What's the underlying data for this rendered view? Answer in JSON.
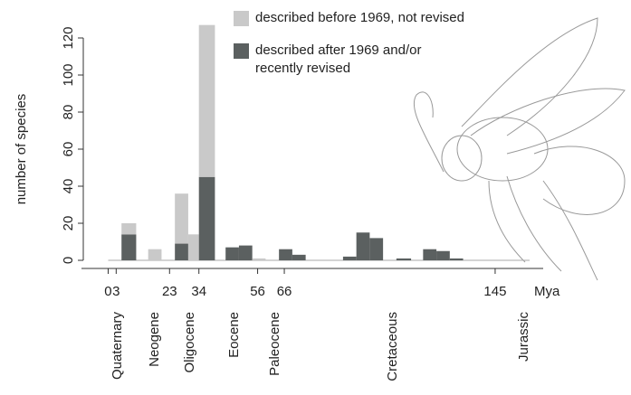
{
  "chart_data": {
    "type": "bar",
    "stacked": true,
    "y_label": "number of species",
    "x_label": "Mya",
    "x0": [
      5,
      15,
      25,
      30,
      34,
      44,
      49,
      54,
      64,
      69,
      88,
      93,
      98,
      108,
      118,
      123,
      128
    ],
    "x1": [
      10.5,
      20,
      30,
      34,
      40,
      49,
      54,
      59,
      69,
      74,
      93,
      98,
      103,
      113.5,
      123,
      128,
      133
    ],
    "series": [
      {
        "name": "described after 1969 and/or recently revised",
        "color": "#5b6060",
        "values": [
          14,
          0,
          9,
          0,
          45,
          7,
          8,
          0,
          6,
          3,
          2,
          15,
          12,
          1,
          6,
          5,
          1
        ]
      },
      {
        "name": "described before 1969, not revised",
        "color": "#c9c9c9",
        "values": [
          6,
          6,
          27,
          14,
          82,
          0,
          0,
          1,
          0,
          0,
          0,
          0,
          0,
          0,
          0,
          0,
          0
        ]
      }
    ],
    "xlim": [
      -10,
      163
    ],
    "xticks": [
      0,
      3,
      23,
      34,
      56,
      66,
      145
    ],
    "ylim": [
      0,
      120
    ],
    "yticks": [
      0,
      20,
      40,
      60,
      80,
      100,
      120
    ],
    "periods": [
      "Quaternary",
      "Neogene",
      "Oligocene",
      "Eocene",
      "Paleocene",
      "Cretaceous",
      "Jurassic"
    ]
  }
}
